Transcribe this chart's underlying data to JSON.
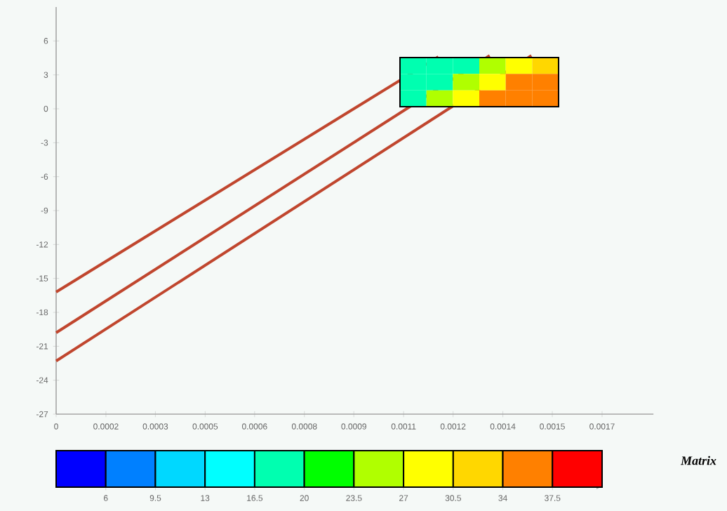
{
  "chart_data": [
    {
      "type": "line",
      "xlim": [
        0,
        0.00186
      ],
      "ylim": [
        -27,
        9
      ],
      "xticks": [
        0,
        {
          "value": 0.000155,
          "label": "0.0002"
        },
        {
          "value": 0.000309,
          "label": "0.0003"
        },
        {
          "value": 0.000464,
          "label": "0.0005"
        },
        {
          "value": 0.000618,
          "label": "0.0006"
        },
        {
          "value": 0.000773,
          "label": "0.0008"
        },
        {
          "value": 0.000927,
          "label": "0.0009"
        },
        {
          "value": 0.001082,
          "label": "0.0011"
        },
        {
          "value": 0.001236,
          "label": "0.0012"
        },
        {
          "value": 0.001391,
          "label": "0.0014"
        },
        {
          "value": 0.001545,
          "label": "0.0015"
        },
        0.0017
      ],
      "yticks": [
        -27,
        -24,
        -21,
        -18,
        -15,
        -12,
        -9,
        -6,
        -3,
        0,
        3,
        6
      ],
      "marker": "none",
      "series": [
        {
          "color": "#c0462e",
          "x": [
            0,
            0.00119
          ],
          "values": [
            -16.2,
            4.6
          ]
        },
        {
          "color": "#c0462e",
          "x": [
            0,
            0.00135
          ],
          "values": [
            -19.8,
            4.7
          ]
        },
        {
          "color": "#c0462e",
          "x": [
            0,
            0.00148
          ],
          "values": [
            -22.3,
            4.7
          ]
        }
      ]
    },
    {
      "type": "heatmap",
      "clabel": "Matrix",
      "clim": [
        2.5,
        41
      ],
      "cticks": [
        6,
        9.5,
        13,
        16.5,
        20,
        23.5,
        27,
        30.5,
        34,
        37.5
      ],
      "colors": [
        "#0000ff",
        "#0080ff",
        "#00d8ff",
        "#00ffff",
        "#00ffb0",
        "#00ff00",
        "#b0ff00",
        "#ffff00",
        "#ffd700",
        "#ff8000",
        "#ff0000"
      ],
      "categories": [
        null,
        null,
        null,
        null,
        null,
        null
      ],
      "y_categories": [
        null,
        null,
        null
      ],
      "cells": [
        [
          18,
          18,
          18,
          25,
          29,
          32
        ],
        [
          18,
          18,
          25,
          29,
          36,
          36
        ],
        [
          18,
          25,
          29,
          36,
          36,
          36
        ]
      ]
    }
  ]
}
